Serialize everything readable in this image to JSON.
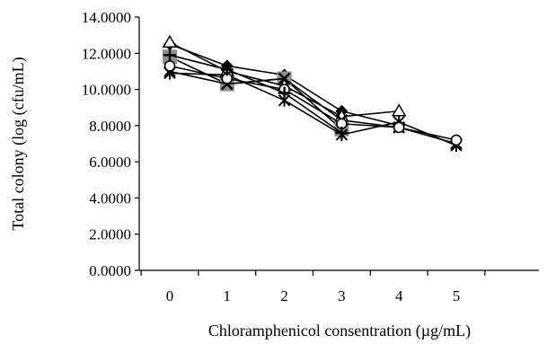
{
  "chart_data": {
    "type": "line",
    "title": "",
    "xlabel": "Chloramphenicol consentration (µg/mL)",
    "ylabel": "Total colony (log (cfu/mL)",
    "x": [
      0,
      1,
      2,
      3,
      4,
      5
    ],
    "x_tick_labels": [
      "0",
      "1",
      "2",
      "3",
      "4",
      "5"
    ],
    "ylim": [
      0,
      14
    ],
    "y_ticks": [
      0,
      2,
      4,
      6,
      8,
      10,
      12,
      14
    ],
    "y_tick_labels": [
      "0.0000",
      "2.0000",
      "4.0000",
      "6.0000",
      "8.0000",
      "10.0000",
      "12.0000",
      "14.0000"
    ],
    "grid": false,
    "legend": "none",
    "series": [
      {
        "marker": "diamond",
        "values": [
          12.5,
          11.3,
          10.8,
          8.8,
          8.0,
          null
        ]
      },
      {
        "marker": "square",
        "values": [
          11.8,
          10.3,
          10.6,
          7.8,
          null,
          null
        ]
      },
      {
        "marker": "triangle",
        "values": [
          12.6,
          11.0,
          10.2,
          8.5,
          8.8,
          null
        ]
      },
      {
        "marker": "x",
        "values": [
          11.0,
          10.3,
          10.6,
          8.3,
          7.9,
          7.0
        ]
      },
      {
        "marker": "star",
        "values": [
          10.9,
          10.8,
          9.4,
          7.5,
          8.2,
          6.9
        ]
      },
      {
        "marker": "circle",
        "values": [
          11.3,
          10.6,
          10.0,
          8.1,
          7.9,
          7.2
        ]
      },
      {
        "marker": "plus",
        "values": [
          11.9,
          11.1,
          9.8,
          7.6,
          null,
          null
        ]
      }
    ]
  }
}
